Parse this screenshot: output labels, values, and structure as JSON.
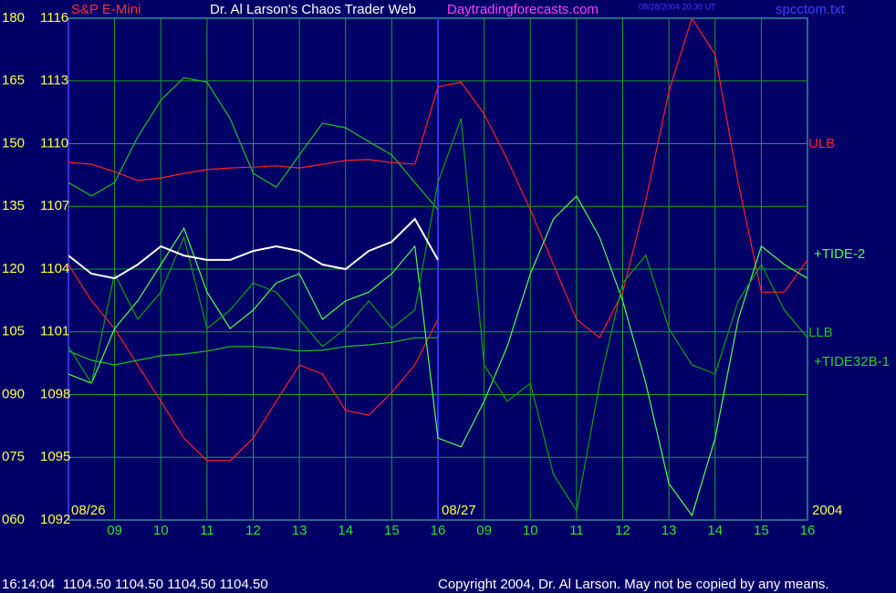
{
  "chart_data": {
    "type": "line",
    "title": "Dr. Al Larson's Chaos Trader Web",
    "subtitle": "Daytradingforecasts.com",
    "instrument": "S&P E-Mini",
    "timestamp": "08/28/2004 20:30 UT",
    "file": "spcctom.txt",
    "date_labels": [
      "08/26",
      "08/27",
      "2004"
    ],
    "status": "16:14:04  1104.50 1104.50 1104.50 1104.50",
    "copyright": "Copyright 2004, Dr. Al Larson. May not be copied by any means.",
    "x": [
      0,
      0.5,
      1,
      1.5,
      2,
      2.5,
      3,
      3.5,
      4,
      4.5,
      5,
      5.5,
      6,
      6.5,
      7,
      7.5,
      8,
      8.5,
      9,
      9.5,
      10,
      10.5,
      11,
      11.5,
      12,
      12.5,
      13,
      13.5,
      14,
      14.5,
      15,
      15.5,
      16
    ],
    "xlim": [
      0,
      16
    ],
    "xticks": [
      {
        "value": 1,
        "label": "09"
      },
      {
        "value": 2,
        "label": "10"
      },
      {
        "value": 3,
        "label": "11"
      },
      {
        "value": 4,
        "label": "12"
      },
      {
        "value": 5,
        "label": "13"
      },
      {
        "value": 6,
        "label": "14"
      },
      {
        "value": 7,
        "label": "15"
      },
      {
        "value": 8,
        "label": "16"
      },
      {
        "value": 9,
        "label": "09"
      },
      {
        "value": 10,
        "label": "10"
      },
      {
        "value": 11,
        "label": "11"
      },
      {
        "value": 12,
        "label": "12"
      },
      {
        "value": 13,
        "label": "13"
      },
      {
        "value": 14,
        "label": "14"
      },
      {
        "value": 15,
        "label": "15"
      },
      {
        "value": 16,
        "label": "16"
      }
    ],
    "ylim": [
      60,
      180
    ],
    "yticks": [
      180,
      165,
      150,
      135,
      120,
      105,
      {
        "value": 90,
        "label": "090"
      },
      {
        "value": 75,
        "label": "075"
      },
      {
        "value": 60,
        "label": "060"
      }
    ],
    "y2lim": [
      1092,
      1116
    ],
    "y2ticks": [
      1116,
      1113,
      1110,
      1107,
      1104,
      1101,
      1098,
      1095,
      1092
    ],
    "grid": true,
    "series": [
      {
        "name": "ULB",
        "color": "#ff2020",
        "values": [
          145.5,
          145.1,
          143.3,
          141.2,
          141.8,
          142.9,
          143.8,
          144.2,
          144.4,
          144.7,
          144.2,
          145.1,
          146.0,
          146.2,
          145.5,
          145.1,
          163.6,
          164.7,
          157.1,
          146.2,
          134.2,
          121.1,
          108.0,
          103.6,
          114.5,
          136.4,
          162.5,
          180,
          171.3,
          140.7,
          114.5,
          114.5,
          122.2
        ]
      },
      {
        "color": "#ff2020",
        "values": [
          121.1,
          112.4,
          105.8,
          97.1,
          88.4,
          79.6,
          74.2,
          74.2,
          79.6,
          88.4,
          97.1,
          94.9,
          86.2,
          85.1,
          90.5,
          97.1,
          108.0,
          null,
          null,
          null,
          null,
          null,
          null,
          null,
          null,
          null,
          null,
          null,
          null,
          null,
          null,
          null,
          null
        ]
      },
      {
        "color": "#20c020",
        "values": [
          140.7,
          137.5,
          140.7,
          151.6,
          160.4,
          165.8,
          164.7,
          156.0,
          142.9,
          139.6,
          147.3,
          154.9,
          153.8,
          150.5,
          147.3,
          140.7,
          134.2,
          null,
          null,
          null,
          null,
          null,
          null,
          null,
          null,
          null,
          null,
          null,
          null,
          null,
          null,
          null,
          null
        ]
      },
      {
        "name": "LLB",
        "color": "#20c020",
        "values": [
          100.4,
          98.2,
          97.1,
          98.2,
          99.3,
          99.7,
          100.4,
          101.5,
          101.5,
          101.1,
          100.4,
          100.6,
          101.5,
          101.9,
          102.5,
          103.6,
          103.6,
          null,
          null,
          null,
          null,
          null,
          null,
          null,
          null,
          null,
          null,
          null,
          null,
          null,
          null,
          null,
          null
        ]
      },
      {
        "name": "+TIDE-2",
        "color": "#50ff50",
        "values": [
          94.9,
          92.7,
          105.8,
          112.4,
          121.1,
          129.8,
          114.5,
          105.8,
          110.2,
          116.7,
          118.9,
          108.0,
          112.4,
          114.5,
          118.9,
          125.5,
          79.6,
          77.5,
          88.4,
          101.5,
          118.9,
          132.0,
          137.5,
          127.6,
          112.4,
          92.7,
          68.7,
          61.1,
          79.6,
          108.0,
          125.5,
          121.1,
          117.8
        ]
      },
      {
        "name": "+TIDE32B-1",
        "color": "#10a010",
        "values": [
          101.5,
          92.7,
          118.9,
          108.0,
          114.5,
          127.6,
          105.8,
          110.2,
          116.7,
          114.5,
          108.0,
          101.5,
          105.8,
          112.4,
          105.8,
          110.2,
          140.7,
          156.0,
          97.1,
          88.4,
          92.7,
          70.9,
          62.2,
          92.7,
          116.7,
          123.3,
          105.8,
          97.1,
          94.9,
          112.4,
          121.1,
          110.2,
          103.6
        ]
      },
      {
        "color": "#ffffff",
        "axis": "y2",
        "values": [
          1104.65,
          1103.78,
          1103.56,
          1104.22,
          1105.09,
          1104.65,
          1104.44,
          1104.44,
          1104.87,
          1105.09,
          1104.87,
          1104.22,
          1104.0,
          1104.87,
          1105.31,
          1106.4,
          1104.44,
          null,
          null,
          null,
          null,
          null,
          null,
          null,
          null,
          null,
          null,
          null,
          null,
          null,
          null,
          null,
          null
        ]
      }
    ]
  }
}
